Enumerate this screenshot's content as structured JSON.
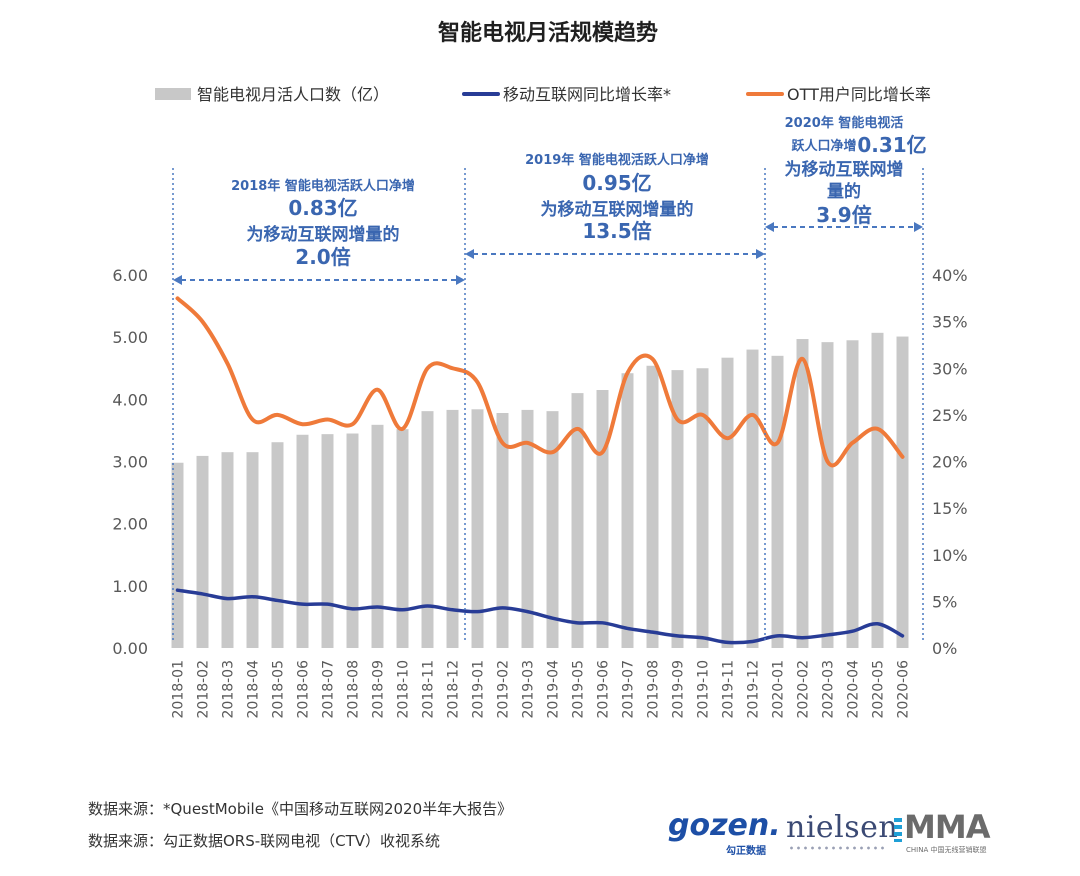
{
  "chart_data": {
    "type": "bar",
    "title": "智能电视月活规模趋势",
    "categories": [
      "2018-01",
      "2018-02",
      "2018-03",
      "2018-04",
      "2018-05",
      "2018-06",
      "2018-07",
      "2018-08",
      "2018-09",
      "2018-10",
      "2018-11",
      "2018-12",
      "2019-01",
      "2019-02",
      "2019-03",
      "2019-04",
      "2019-05",
      "2019-06",
      "2019-07",
      "2019-08",
      "2019-09",
      "2019-10",
      "2019-11",
      "2019-12",
      "2020-01",
      "2020-02",
      "2020-03",
      "2020-04",
      "2020-05",
      "2020-06"
    ],
    "series": [
      {
        "name": "智能电视月活人口数（亿）",
        "type": "bar",
        "axis": "left",
        "color": "#c8c8c8",
        "values": [
          2.98,
          3.09,
          3.15,
          3.15,
          3.31,
          3.43,
          3.44,
          3.45,
          3.59,
          3.52,
          3.81,
          3.83,
          3.84,
          3.78,
          3.83,
          3.81,
          4.1,
          4.15,
          4.42,
          4.54,
          4.47,
          4.5,
          4.67,
          4.8,
          4.7,
          4.97,
          4.92,
          4.95,
          5.07,
          5.01
        ]
      },
      {
        "name": "移动互联网同比增长率*",
        "type": "line",
        "axis": "right",
        "color": "#283c96",
        "values": [
          6.2,
          5.8,
          5.3,
          5.5,
          5.1,
          4.7,
          4.7,
          4.2,
          4.4,
          4.1,
          4.5,
          4.1,
          3.9,
          4.3,
          3.9,
          3.2,
          2.7,
          2.7,
          2.1,
          1.7,
          1.3,
          1.1,
          0.6,
          0.7,
          1.3,
          1.1,
          1.4,
          1.8,
          2.6,
          1.3
        ]
      },
      {
        "name": "OTT用户同比增长率",
        "type": "line",
        "axis": "right",
        "color": "#ef7a3a",
        "values": [
          37.5,
          35.0,
          30.5,
          24.5,
          25.0,
          24.0,
          24.5,
          24.0,
          27.7,
          23.5,
          30.0,
          30.0,
          28.5,
          22.0,
          22.0,
          21.0,
          23.5,
          21.0,
          29.5,
          31.0,
          24.5,
          25.0,
          22.5,
          25.0,
          22.0,
          31.0,
          20.0,
          22.0,
          23.5,
          20.5
        ]
      }
    ],
    "y_left": {
      "ylim": [
        0,
        6
      ],
      "ticks": [
        "0.00",
        "1.00",
        "2.00",
        "3.00",
        "4.00",
        "5.00",
        "6.00"
      ]
    },
    "y_right": {
      "ylim": [
        0,
        40
      ],
      "ticks": [
        "0%",
        "5%",
        "10%",
        "15%",
        "20%",
        "25%",
        "30%",
        "35%",
        "40%"
      ]
    },
    "legend_position": "top",
    "grid": false,
    "annotations": [
      {
        "period": "2018",
        "from": "2018-01",
        "to": "2018-12",
        "lines": [
          "2018年  智能电视活跃人口净增",
          "0.83亿",
          "为移动互联网增量的",
          "2.0倍"
        ]
      },
      {
        "period": "2019",
        "from": "2019-01",
        "to": "2019-12",
        "lines": [
          "2019年  智能电视活跃人口净增",
          "0.95亿",
          "为移动互联网增量的",
          "13.5倍"
        ]
      },
      {
        "period": "2020",
        "from": "2020-01",
        "to": "2020-06",
        "lines": [
          "2020年  智能电视活",
          "跃人口净增",
          "0.31亿",
          "为移动互联网增",
          "量的",
          "3.9倍"
        ]
      }
    ]
  },
  "footer": {
    "source1": "数据来源：*QuestMobile《中国移动互联网2020半年大报告》",
    "source2": "数据来源：勾正数据ORS-联网电视（CTV）收视系统"
  },
  "logos": {
    "gozen": "gozen.",
    "gozen_sub": "勾正数据",
    "nielsen": "nielsen",
    "mma": "MMA",
    "mma_sub": "CHINA 中国无线营销联盟"
  }
}
